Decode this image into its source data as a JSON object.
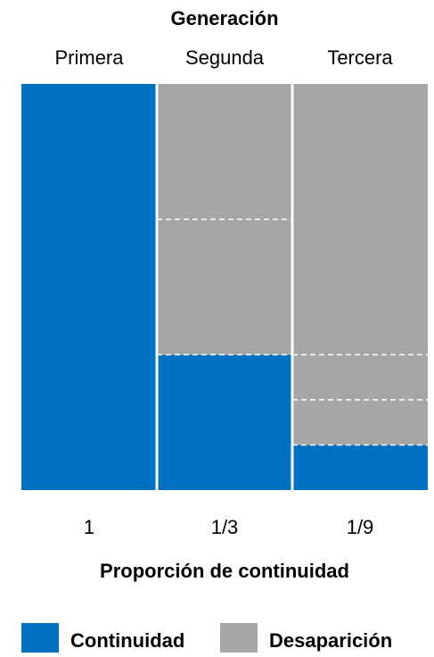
{
  "chart_data": {
    "type": "bar",
    "title": "Generación",
    "xlabel": "Proporción de continuidad",
    "ylabel": "",
    "categories": [
      "Primera",
      "Segunda",
      "Tercera"
    ],
    "value_labels": [
      "1",
      "1/3",
      "1/9"
    ],
    "ylim": [
      0,
      1
    ],
    "stacked": true,
    "grid": false,
    "legend_position": "bottom",
    "series": [
      {
        "name": "Continuidad",
        "color": "#0070c0",
        "values": [
          1,
          0.3333,
          0.1111
        ]
      },
      {
        "name": "Desaparición",
        "color": "#a6a6a6",
        "values": [
          0,
          0.6667,
          0.8889
        ]
      }
    ],
    "subdivisions": [
      [],
      [
        0.3333,
        0.6667
      ],
      [
        0.1111,
        0.2222,
        0.3333
      ]
    ]
  }
}
